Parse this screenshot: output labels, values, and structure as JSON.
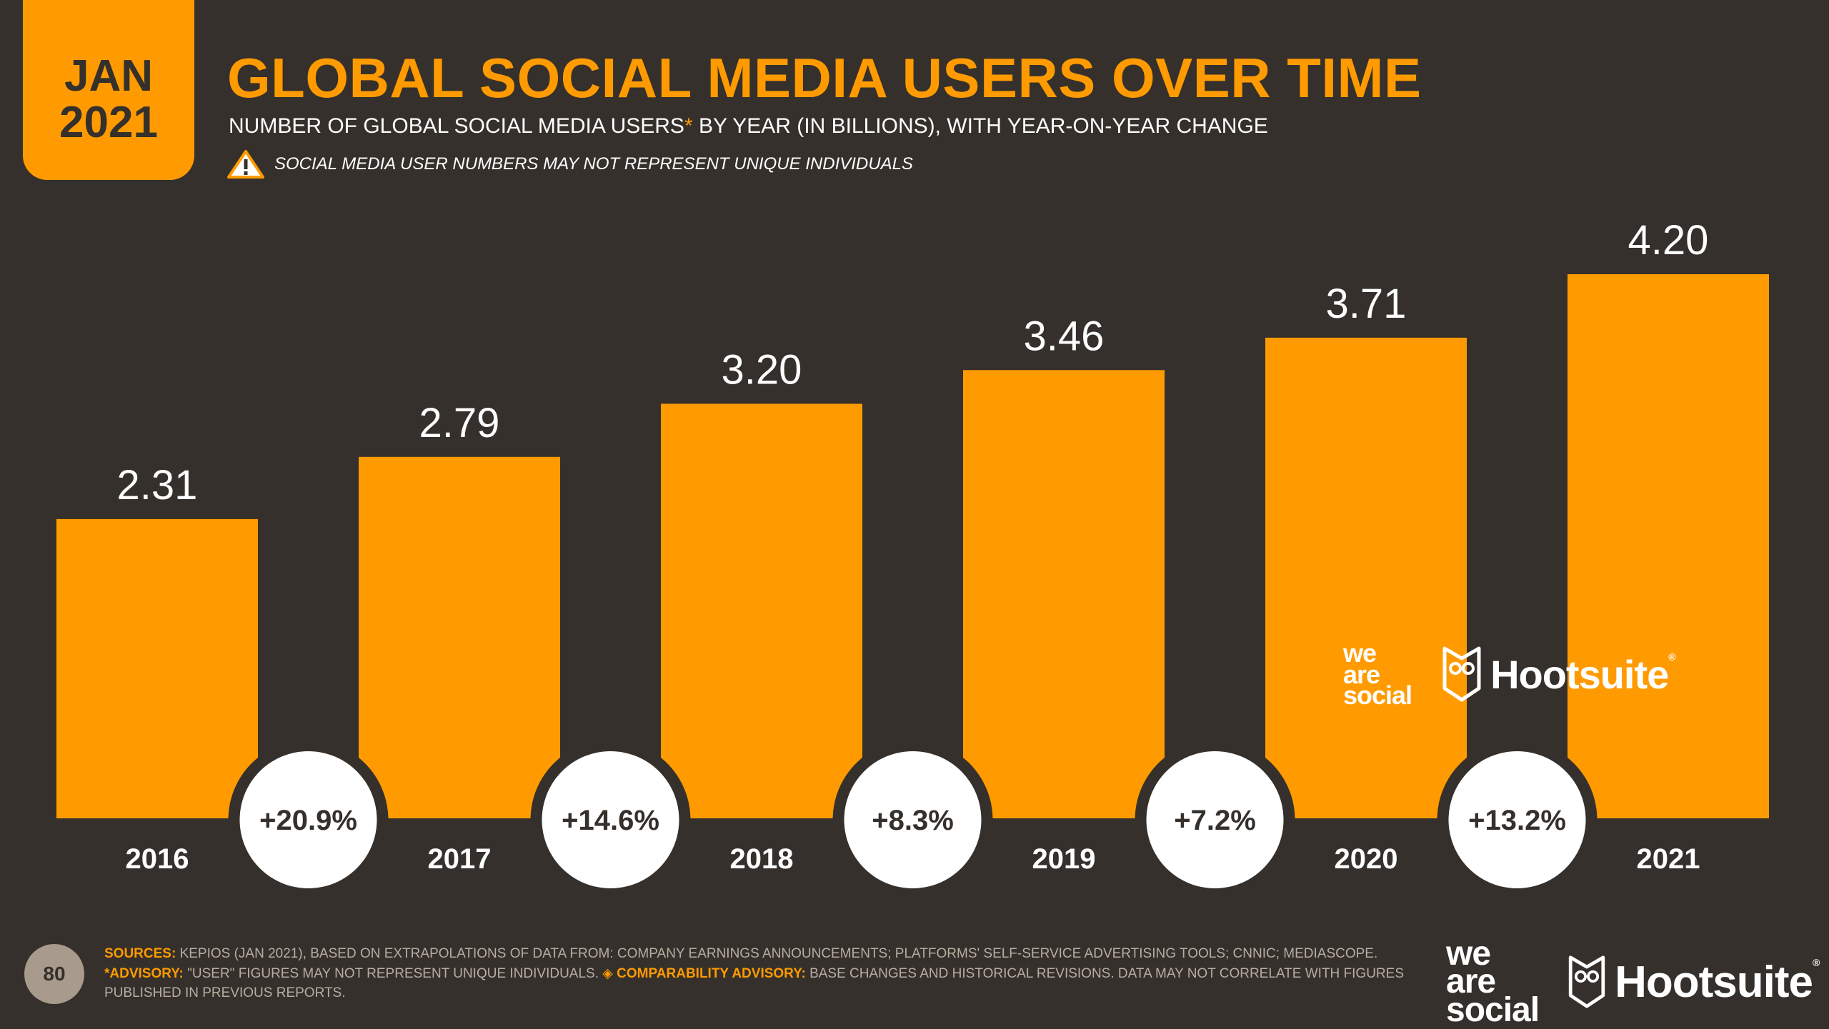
{
  "badge": {
    "month": "JAN",
    "year": "2021"
  },
  "title": "GLOBAL SOCIAL MEDIA USERS OVER TIME",
  "subtitle": {
    "before_star": "NUMBER OF GLOBAL SOCIAL MEDIA USERS",
    "star": "*",
    "after_star": " BY YEAR (IN BILLIONS), WITH YEAR-ON-YEAR CHANGE"
  },
  "warning": "SOCIAL MEDIA USER NUMBERS MAY NOT REPRESENT UNIQUE INDIVIDUALS",
  "colors": {
    "background": "#35302b",
    "accent": "#ff9b00",
    "text": "#ffffff",
    "circle": "#ffffff"
  },
  "chart_data": {
    "type": "bar",
    "title": "GLOBAL SOCIAL MEDIA USERS OVER TIME",
    "categories": [
      "2016",
      "2017",
      "2018",
      "2019",
      "2020",
      "2021"
    ],
    "values": [
      2.31,
      2.79,
      3.2,
      3.46,
      3.71,
      4.2
    ],
    "value_labels": [
      "2.31",
      "2.79",
      "3.20",
      "3.46",
      "3.71",
      "4.20"
    ],
    "yoy_changes": [
      "+20.9%",
      "+14.6%",
      "+8.3%",
      "+7.2%",
      "+13.2%"
    ],
    "ylabel": "Billions",
    "xlabel": "",
    "ylim": [
      0,
      4.2
    ]
  },
  "branding": {
    "we_are_social": [
      "we",
      "are",
      "social"
    ],
    "hootsuite": "Hootsuite",
    "registered": "®"
  },
  "page_number": "80",
  "footnotes": {
    "sources_label": "SOURCES:",
    "sources_text": " KEPIOS (JAN 2021), BASED ON EXTRAPOLATIONS OF DATA FROM: COMPANY EARNINGS ANNOUNCEMENTS; PLATFORMS' SELF-SERVICE ADVERTISING TOOLS; CNNIC; MEDIASCOPE.",
    "advisory_label": "*ADVISORY:",
    "advisory_text": " \"USER\" FIGURES MAY NOT REPRESENT UNIQUE INDIVIDUALS. ",
    "comparability_symbol": "◈",
    "comparability_label": " COMPARABILITY ADVISORY:",
    "comparability_text": " BASE CHANGES AND HISTORICAL REVISIONS. DATA MAY NOT CORRELATE WITH FIGURES PUBLISHED IN PREVIOUS REPORTS."
  }
}
